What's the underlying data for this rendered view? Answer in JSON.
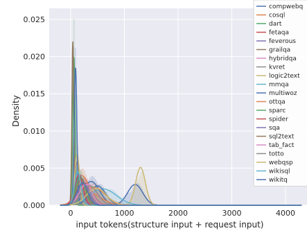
{
  "chart_data": {
    "type": "area",
    "title": "",
    "xlabel": "input tokens(structure input + request input)",
    "ylabel": "Density",
    "xlim": [
      -400,
      4400
    ],
    "ylim": [
      0,
      0.0265
    ],
    "xticks": [
      0,
      1000,
      2000,
      3000,
      4000
    ],
    "yticks": [
      0.0,
      0.005,
      0.01,
      0.015,
      0.02,
      0.025
    ],
    "ytick_labels": [
      "0.000",
      "0.005",
      "0.010",
      "0.015",
      "0.020",
      "0.025"
    ],
    "grid": true,
    "legend_position": "top-right",
    "series": [
      {
        "name": "compwebq",
        "color": "#4c72b0",
        "peaks": [
          [
            380,
            0.0032,
            160
          ],
          [
            1200,
            0.0028,
            140
          ]
        ]
      },
      {
        "name": "cosql",
        "color": "#dd8452",
        "peaks": [
          [
            200,
            0.0035,
            110
          ],
          [
            450,
            0.0012,
            180
          ]
        ]
      },
      {
        "name": "dart",
        "color": "#55a868",
        "peaks": [
          [
            60,
            0.02,
            22
          ]
        ]
      },
      {
        "name": "fetaqa",
        "color": "#c44e52",
        "peaks": [
          [
            250,
            0.003,
            140
          ]
        ]
      },
      {
        "name": "feverous",
        "color": "#8172b3",
        "peaks": [
          [
            160,
            0.0042,
            70
          ]
        ]
      },
      {
        "name": "grailqa",
        "color": "#937860",
        "peaks": [
          [
            40,
            0.0218,
            18
          ],
          [
            300,
            0.0025,
            120
          ]
        ]
      },
      {
        "name": "hybridqa",
        "color": "#da8bc3",
        "peaks": [
          [
            320,
            0.0028,
            160
          ]
        ]
      },
      {
        "name": "kvret",
        "color": "#8c8c8c",
        "peaks": [
          [
            120,
            0.0058,
            40
          ]
        ]
      },
      {
        "name": "logic2text",
        "color": "#ccb974",
        "peaks": [
          [
            120,
            0.0068,
            45
          ],
          [
            1300,
            0.0051,
            90
          ]
        ]
      },
      {
        "name": "mmqa",
        "color": "#64b5cd",
        "peaks": [
          [
            600,
            0.0022,
            250
          ]
        ]
      },
      {
        "name": "multiwoz",
        "color": "#4c72b0",
        "peaks": [
          [
            90,
            0.0185,
            25
          ],
          [
            500,
            0.0026,
            150
          ]
        ]
      },
      {
        "name": "ottqa",
        "color": "#dd8452",
        "peaks": [
          [
            420,
            0.0024,
            220
          ]
        ]
      },
      {
        "name": "sparc",
        "color": "#55a868",
        "peaks": [
          [
            180,
            0.0038,
            90
          ]
        ]
      },
      {
        "name": "spider",
        "color": "#c44e52",
        "peaks": [
          [
            150,
            0.004,
            80
          ]
        ]
      },
      {
        "name": "sqa",
        "color": "#8172b3",
        "peaks": [
          [
            240,
            0.003,
            110
          ]
        ]
      },
      {
        "name": "sql2text",
        "color": "#937860",
        "peaks": [
          [
            200,
            0.0036,
            90
          ]
        ]
      },
      {
        "name": "tab_fact",
        "color": "#da8bc3",
        "peaks": [
          [
            280,
            0.0028,
            120
          ]
        ]
      },
      {
        "name": "totto",
        "color": "#8c8c8c",
        "peaks": [
          [
            350,
            0.0026,
            150
          ]
        ]
      },
      {
        "name": "webqsp",
        "color": "#ccb974",
        "peaks": [
          [
            480,
            0.0023,
            180
          ]
        ]
      },
      {
        "name": "wikisql",
        "color": "#64b5cd",
        "peaks": [
          [
            130,
            0.0045,
            60
          ]
        ]
      },
      {
        "name": "wikitq",
        "color": "#4c72b0",
        "peaks": [
          [
            220,
            0.003,
            100
          ]
        ]
      }
    ]
  }
}
